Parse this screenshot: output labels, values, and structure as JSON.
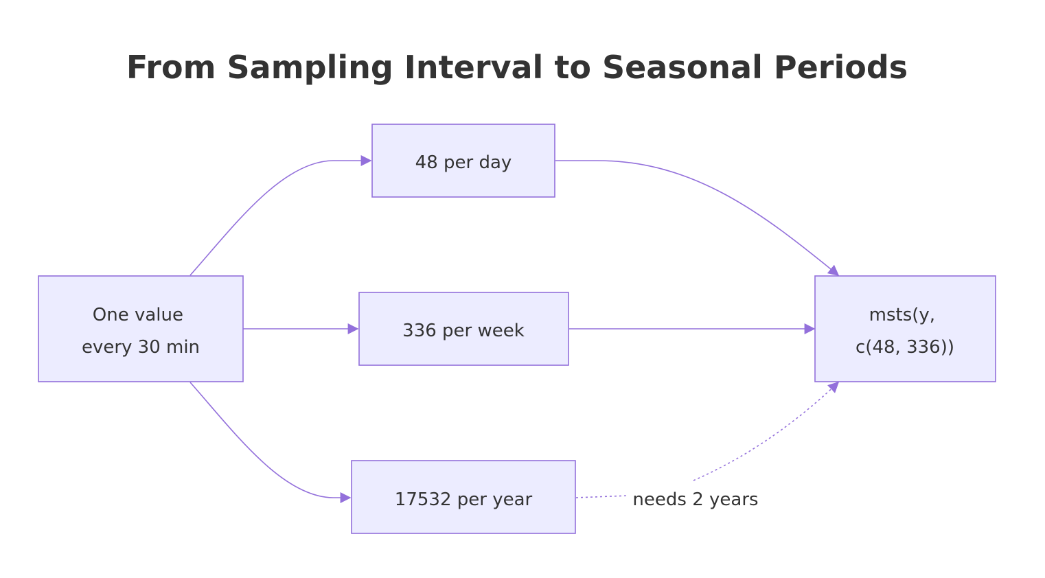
{
  "title": "From Sampling Interval to Seasonal Periods",
  "nodes": {
    "source": {
      "lines": [
        "One value",
        "every 30 min"
      ]
    },
    "daily": {
      "label": "48 per day"
    },
    "weekly": {
      "label": "336 per week"
    },
    "yearly": {
      "label": "17532 per year"
    },
    "model": {
      "lines": [
        "msts(y,",
        "c(48, 336))"
      ]
    }
  },
  "edges": {
    "yearly_to_model": {
      "label": "needs 2 years",
      "style": "dashed"
    }
  },
  "colors": {
    "node_fill": "#ECECFF",
    "node_stroke": "#9370DB",
    "edge": "#9370DB",
    "text": "#333333"
  }
}
